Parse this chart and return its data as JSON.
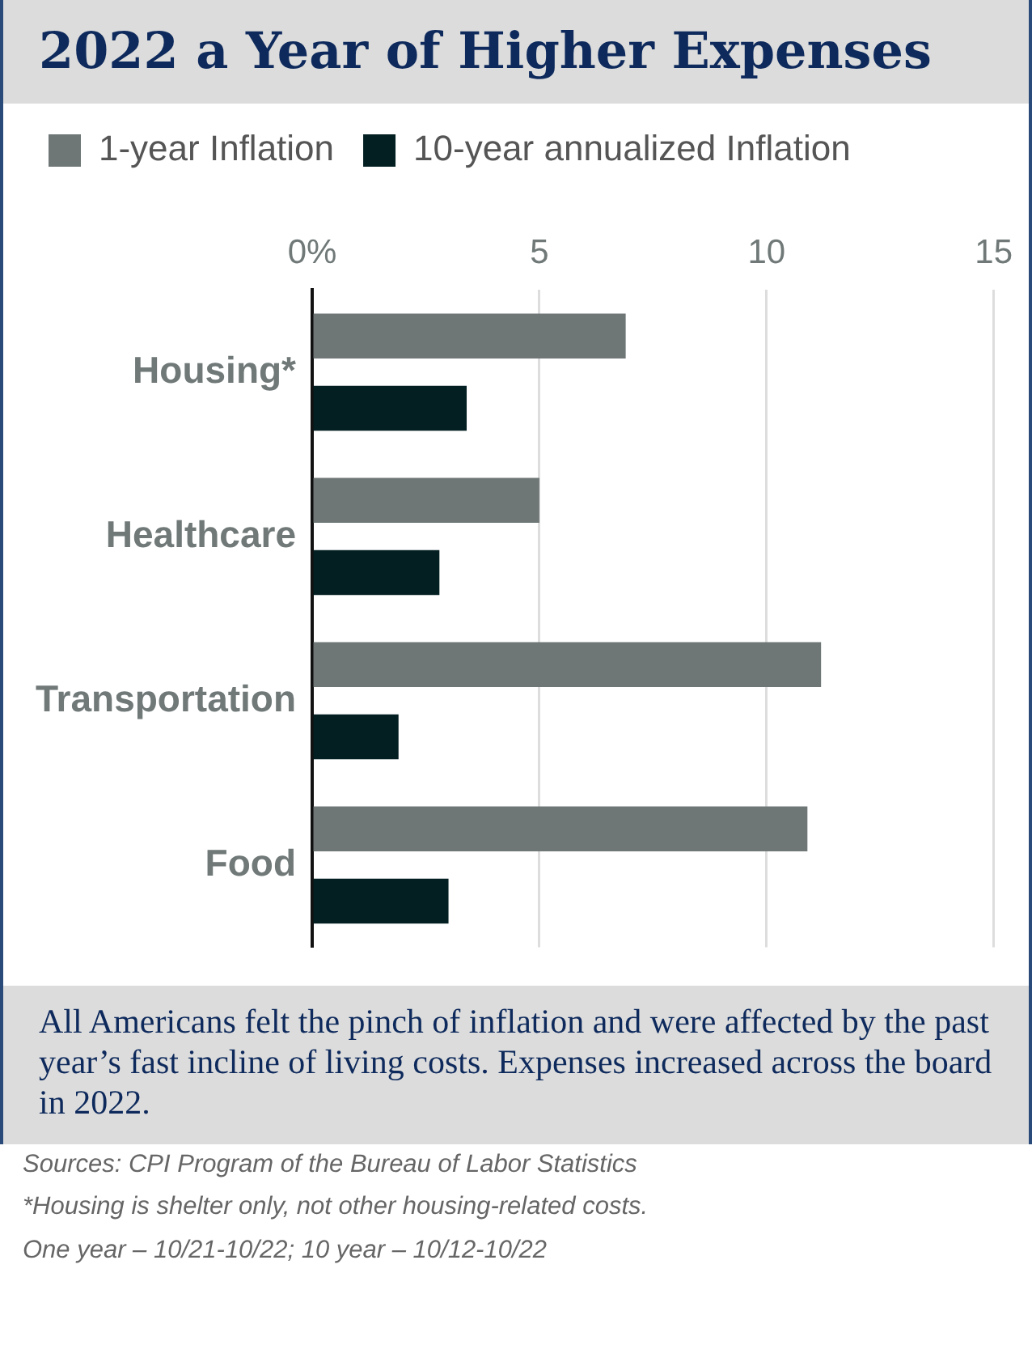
{
  "chart_data": {
    "type": "bar",
    "orientation": "horizontal",
    "title": "2022 a Year of Higher Expenses",
    "categories": [
      "Housing*",
      "Healthcare",
      "Transportation",
      "Food"
    ],
    "series": [
      {
        "name": "1-year Inflation",
        "color": "#6e7676",
        "values": [
          6.9,
          5.0,
          11.2,
          10.9
        ]
      },
      {
        "name": "10-year annualized Inflation",
        "color": "#031f22",
        "values": [
          3.4,
          2.8,
          1.9,
          3.0
        ]
      }
    ],
    "xlim": [
      0,
      15
    ],
    "xticks": [
      {
        "value": 0,
        "label": "0%"
      },
      5,
      10,
      15
    ],
    "grid": "x",
    "legend": "top left",
    "annotations": [
      "All Americans felt the pinch of inflation and were affected by the past year’s fast incline of living costs. Expenses increased across the board in 2022.",
      "Sources: CPI Program of the Bureau of Labor Statistics",
      "*Housing is shelter only, not other housing-related costs.",
      "One year – 10/21-10/22; 10 year – 10/12-10/22"
    ]
  }
}
